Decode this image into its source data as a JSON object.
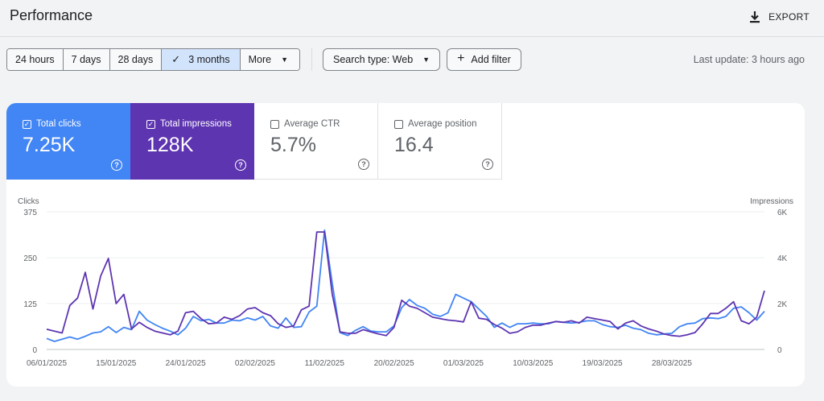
{
  "header": {
    "title": "Performance",
    "export_label": "EXPORT"
  },
  "filters": {
    "date_ranges": [
      {
        "label": "24 hours",
        "active": false
      },
      {
        "label": "7 days",
        "active": false
      },
      {
        "label": "28 days",
        "active": false
      },
      {
        "label": "3 months",
        "active": true
      },
      {
        "label": "More",
        "active": false
      }
    ],
    "search_type": "Search type: Web",
    "add_filter": "Add filter",
    "last_update": "Last update: 3 hours ago"
  },
  "metrics": {
    "clicks": {
      "label": "Total clicks",
      "value": "7.25K",
      "checked": true
    },
    "impressions": {
      "label": "Total impressions",
      "value": "128K",
      "checked": true
    },
    "ctr": {
      "label": "Average CTR",
      "value": "5.7%",
      "checked": false
    },
    "position": {
      "label": "Average position",
      "value": "16.4",
      "checked": false
    }
  },
  "colors": {
    "clicks": "#4285f4",
    "impressions": "#5e35b1",
    "accent_bg": "#d2e3fc"
  },
  "chart_data": {
    "type": "line",
    "left_axis_title": "Clicks",
    "right_axis_title": "Impressions",
    "left_ticks": [
      "0",
      "125",
      "250",
      "375"
    ],
    "right_ticks": [
      "0",
      "2K",
      "4K",
      "6K"
    ],
    "left_range": [
      0,
      375
    ],
    "right_range": [
      0,
      6000
    ],
    "x_labels": [
      "06/01/2025",
      "15/01/2025",
      "24/01/2025",
      "02/02/2025",
      "11/02/2025",
      "20/02/2025",
      "01/03/2025",
      "10/03/2025",
      "19/03/2025",
      "28/03/2025"
    ],
    "x_label_index": [
      0,
      9,
      18,
      27,
      36,
      45,
      54,
      63,
      72,
      81
    ],
    "series": [
      {
        "name": "Clicks",
        "axis": "left",
        "values": [
          30,
          22,
          28,
          34,
          28,
          36,
          45,
          48,
          62,
          46,
          60,
          54,
          104,
          80,
          68,
          58,
          50,
          40,
          58,
          90,
          78,
          82,
          72,
          72,
          80,
          78,
          86,
          80,
          90,
          64,
          58,
          86,
          60,
          62,
          102,
          118,
          325,
          180,
          46,
          38,
          52,
          62,
          50,
          48,
          48,
          64,
          114,
          136,
          120,
          112,
          96,
          90,
          100,
          150,
          140,
          130,
          110,
          90,
          60,
          72,
          60,
          70,
          70,
          72,
          70,
          70,
          76,
          74,
          72,
          74,
          78,
          78,
          68,
          62,
          60,
          66,
          58,
          54,
          44,
          40,
          42,
          44,
          62,
          70,
          72,
          84,
          86,
          84,
          90,
          112,
          116,
          100,
          80,
          104
        ]
      },
      {
        "name": "Impressions",
        "axis": "left",
        "values": [
          55,
          50,
          45,
          120,
          140,
          210,
          110,
          200,
          248,
          125,
          150,
          56,
          74,
          60,
          50,
          45,
          40,
          50,
          100,
          104,
          84,
          70,
          72,
          88,
          82,
          92,
          110,
          114,
          100,
          92,
          70,
          60,
          64,
          108,
          118,
          320,
          320,
          150,
          48,
          44,
          44,
          54,
          48,
          42,
          38,
          60,
          134,
          118,
          112,
          100,
          88,
          84,
          80,
          78,
          75,
          130,
          85,
          82,
          68,
          58,
          44,
          48,
          60,
          66,
          66,
          72,
          76,
          74,
          78,
          72,
          88,
          84,
          80,
          76,
          56,
          72,
          78,
          64,
          56,
          50,
          42,
          38,
          36,
          40,
          46,
          70,
          98,
          98,
          112,
          130,
          78,
          70,
          88,
          160
        ]
      }
    ]
  }
}
